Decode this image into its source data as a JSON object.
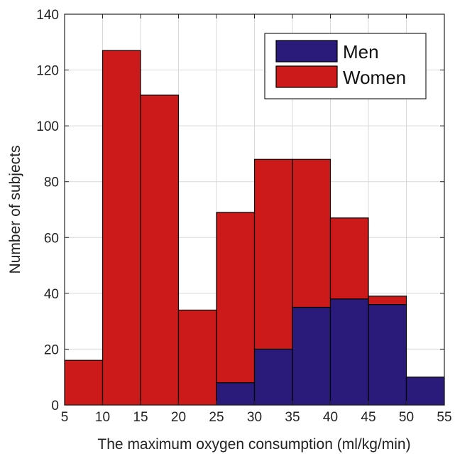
{
  "chart_data": {
    "type": "bar",
    "subtype": "stacked-histogram",
    "xlabel": "The maximum oxygen consumption (ml/kg/min)",
    "ylabel": "Number of subjects",
    "xlim": [
      5,
      55
    ],
    "ylim": [
      0,
      140
    ],
    "x_ticks": [
      5,
      10,
      15,
      20,
      25,
      30,
      35,
      40,
      45,
      50,
      55
    ],
    "y_ticks": [
      0,
      20,
      40,
      60,
      80,
      100,
      120,
      140
    ],
    "bin_edges": [
      5,
      10,
      15,
      20,
      25,
      30,
      35,
      40,
      45,
      50,
      55
    ],
    "grid": true,
    "legend_position": "top-right",
    "series": [
      {
        "name": "Men",
        "color": "#2a1a7a",
        "values": [
          0,
          0,
          0,
          0,
          8,
          20,
          35,
          38,
          36,
          10
        ]
      },
      {
        "name": "Women",
        "color": "#cc1a1a",
        "values": [
          16,
          127,
          111,
          34,
          61,
          68,
          53,
          29,
          3,
          0
        ]
      }
    ]
  }
}
